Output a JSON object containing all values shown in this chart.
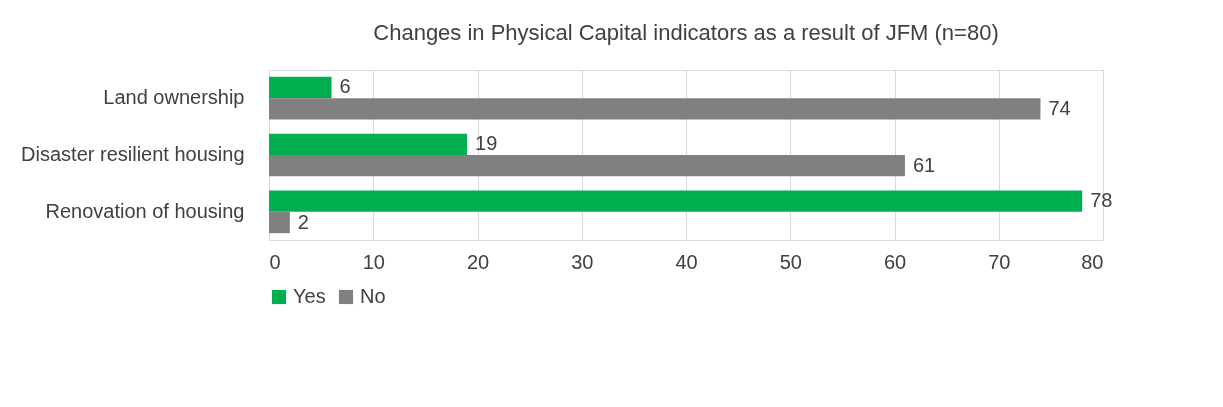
{
  "chart_data": {
    "type": "bar",
    "orientation": "horizontal",
    "title": "Changes in Physical Capital indicators as a result of JFM (n=80)",
    "categories": [
      "Land ownership",
      "Disaster resilient housing",
      "Renovation of housing"
    ],
    "series": [
      {
        "name": "Yes",
        "color": "#00b050",
        "values": [
          6,
          19,
          78
        ]
      },
      {
        "name": "No",
        "color": "#808080",
        "values": [
          74,
          61,
          2
        ]
      }
    ],
    "xlim": [
      0,
      80
    ],
    "xticks": [
      0,
      10,
      20,
      30,
      40,
      50,
      60,
      70,
      80
    ],
    "grid": "x",
    "legend": "bottom",
    "data_labels": true
  }
}
